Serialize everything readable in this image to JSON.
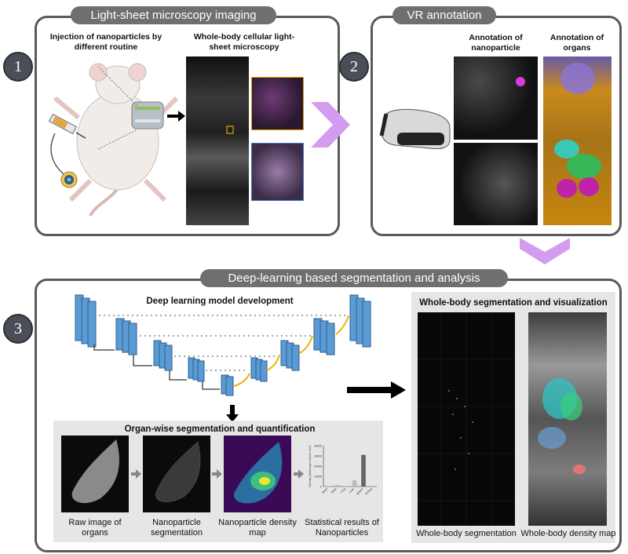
{
  "panel1": {
    "step": "1",
    "title": "Light-sheet microscopy imaging",
    "injection_label": "Injection of nanoparticles by different routine",
    "microscopy_label": "Whole-body cellular light-sheet microscopy"
  },
  "panel2": {
    "step": "2",
    "title": "VR annotation",
    "nanoparticle_label": "Annotation of nanoparticle",
    "organs_label": "Annotation of organs"
  },
  "panel3": {
    "step": "3",
    "title": "Deep-learning based segmentation and analysis",
    "model_label": "Deep learning model development",
    "organwise_label": "Organ-wise segmentation and quantification",
    "wholebody_label": "Whole-body segmentation and visualization",
    "captions": {
      "raw": "Raw image of organs",
      "seg": "Nanoparticle segmentation",
      "density": "Nanoparticle density map",
      "stats": "Statistical results of Nanoparticles",
      "wb_seg": "Whole-body segmentation",
      "wb_density": "Whole-body density map"
    }
  },
  "chart_data": {
    "type": "bar",
    "categories": [
      "Heart",
      "Brain",
      "Lung",
      "Liver",
      "Spleen",
      "Kidney"
    ],
    "values": [
      300,
      1500,
      400,
      6000,
      31000,
      700
    ],
    "ylabel": "Density (dots/organ volume mm³)",
    "yticks": [
      "0",
      "10000",
      "20000",
      "30000",
      "40000"
    ],
    "ylim": [
      0,
      40000
    ]
  }
}
